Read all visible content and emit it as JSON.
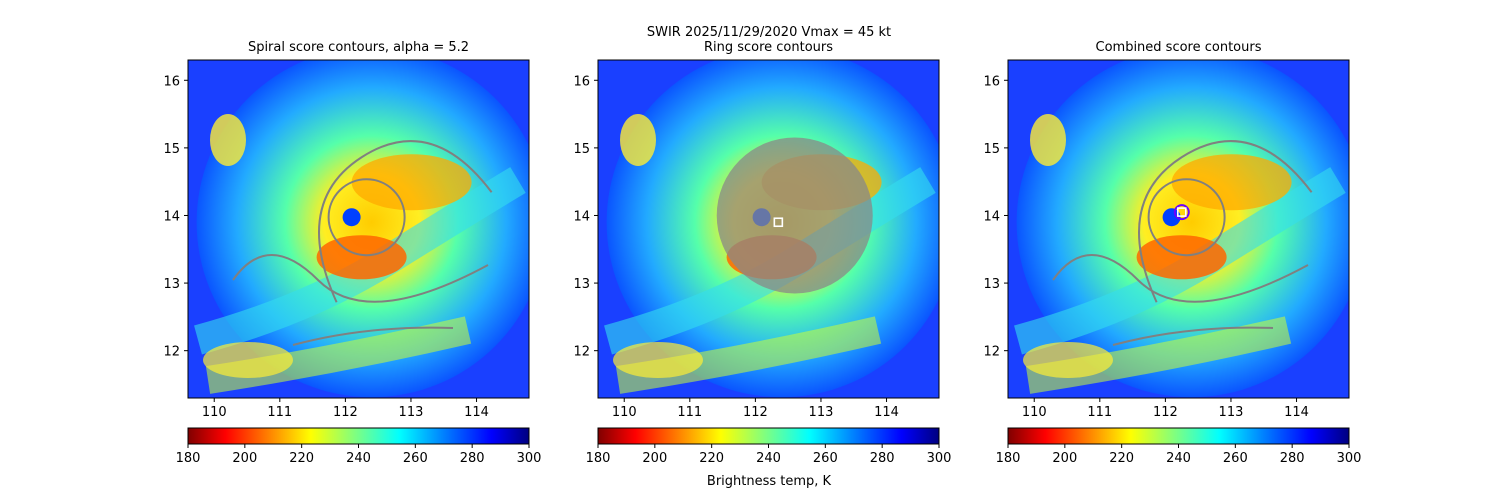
{
  "figure": {
    "suptitle": "SWIR  2025/11/29/2020    Vmax = 45 kt",
    "colorbar_label": "Brightness temp, K"
  },
  "chart_data": [
    {
      "type": "heatmap",
      "title": "Spiral score contours, alpha =  5.2",
      "xlim": [
        109.6,
        114.8
      ],
      "ylim": [
        11.3,
        16.3
      ],
      "x_ticks": [
        "110",
        "111",
        "112",
        "113",
        "114"
      ],
      "y_ticks": [
        "12",
        "13",
        "14",
        "15",
        "16"
      ],
      "colorbar": {
        "range": [
          180,
          300
        ],
        "ticks": [
          "180",
          "200",
          "220",
          "240",
          "260",
          "280",
          "300"
        ]
      },
      "center_marker": null
    },
    {
      "type": "heatmap",
      "title": "Ring score contours",
      "xlim": [
        109.6,
        114.8
      ],
      "ylim": [
        11.3,
        16.3
      ],
      "x_ticks": [
        "110",
        "111",
        "112",
        "113",
        "114"
      ],
      "y_ticks": [
        "12",
        "13",
        "14",
        "15",
        "16"
      ],
      "colorbar": {
        "range": [
          180,
          300
        ],
        "ticks": [
          "180",
          "200",
          "220",
          "240",
          "260",
          "280",
          "300"
        ]
      },
      "center_marker": {
        "lon": 112.35,
        "lat": 13.9
      }
    },
    {
      "type": "heatmap",
      "title": "Combined score contours",
      "xlim": [
        109.6,
        114.8
      ],
      "ylim": [
        11.3,
        16.3
      ],
      "x_ticks": [
        "110",
        "111",
        "112",
        "113",
        "114"
      ],
      "y_ticks": [
        "12",
        "13",
        "14",
        "15",
        "16"
      ],
      "colorbar": {
        "range": [
          180,
          300
        ],
        "ticks": [
          "180",
          "200",
          "220",
          "240",
          "260",
          "280",
          "300"
        ]
      },
      "center_marker": {
        "lon": 112.25,
        "lat": 14.05
      }
    }
  ],
  "colors": {
    "jet_stops": [
      "#800000",
      "#ff0000",
      "#ffff00",
      "#00ffff",
      "#0080ff",
      "#0000ff",
      "#000080"
    ],
    "contour": "#808080"
  }
}
